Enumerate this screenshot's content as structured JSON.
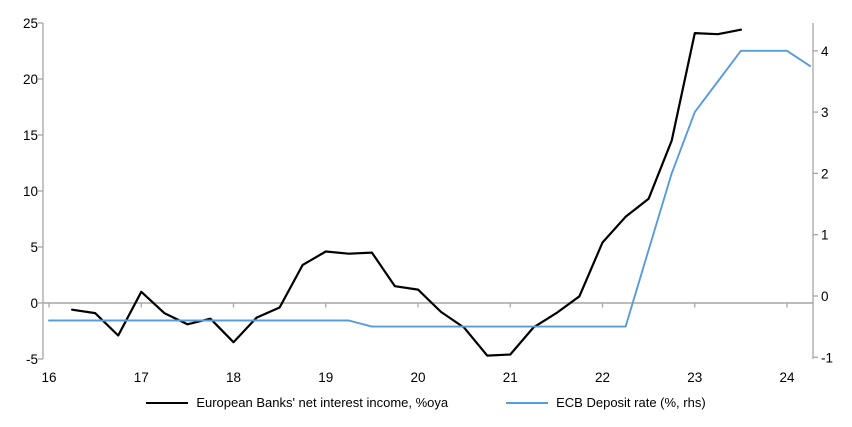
{
  "chart_data": {
    "type": "line",
    "title": "",
    "legend_position": "bottom",
    "grid": "zero-line-only",
    "x_axis": {
      "min": 16,
      "max": 24.35,
      "ticks": [
        16,
        17,
        18,
        19,
        20,
        21,
        22,
        23,
        24
      ]
    },
    "left_axis": {
      "min": -5,
      "max": 25,
      "ticks": [
        -5,
        0,
        5,
        10,
        15,
        20,
        25
      ]
    },
    "right_axis": {
      "min": -1,
      "max": 4.35,
      "ticks": [
        -1,
        0,
        1,
        2,
        3,
        4
      ]
    },
    "colors": {
      "axis": "#A6A6A6",
      "zero_line": "#A6A6A6",
      "nii_line": "#000000",
      "ecb_line": "#5B9BD5"
    },
    "series": [
      {
        "name": "European Banks' net interest income, %oya",
        "axis": "left",
        "color": "#000000",
        "x": [
          16.25,
          16.5,
          16.75,
          17.0,
          17.25,
          17.5,
          17.75,
          18.0,
          18.25,
          18.5,
          18.75,
          19.0,
          19.25,
          19.5,
          19.75,
          20.0,
          20.25,
          20.5,
          20.75,
          21.0,
          21.25,
          21.5,
          21.75,
          22.0,
          22.25,
          22.5,
          22.75,
          23.0,
          23.25,
          23.5
        ],
        "values": [
          -0.6,
          -0.9,
          -2.9,
          1.0,
          -0.9,
          -1.9,
          -1.4,
          -3.5,
          -1.3,
          -0.4,
          3.4,
          4.6,
          4.4,
          4.5,
          1.5,
          1.2,
          -0.8,
          -2.2,
          -4.7,
          -4.6,
          -2.2,
          -0.9,
          0.6,
          5.4,
          7.7,
          9.3,
          14.5,
          24.1,
          24.0,
          24.4
        ]
      },
      {
        "name": "ECB Deposit rate (%, rhs)",
        "axis": "right",
        "color": "#5B9BD5",
        "x": [
          16.0,
          16.25,
          16.5,
          16.75,
          17.0,
          17.25,
          17.5,
          17.75,
          18.0,
          18.25,
          18.5,
          18.75,
          19.0,
          19.25,
          19.5,
          19.75,
          20.0,
          20.25,
          20.5,
          20.75,
          21.0,
          21.25,
          21.5,
          21.75,
          22.0,
          22.25,
          22.5,
          22.75,
          23.0,
          23.25,
          23.5,
          23.75,
          24.0,
          24.25
        ],
        "values": [
          -0.4,
          -0.4,
          -0.4,
          -0.4,
          -0.4,
          -0.4,
          -0.4,
          -0.4,
          -0.4,
          -0.4,
          -0.4,
          -0.4,
          -0.4,
          -0.4,
          -0.5,
          -0.5,
          -0.5,
          -0.5,
          -0.5,
          -0.5,
          -0.5,
          -0.5,
          -0.5,
          -0.5,
          -0.5,
          -0.5,
          0.75,
          2.0,
          3.0,
          3.5,
          4.0,
          4.0,
          4.0,
          3.75
        ]
      }
    ]
  }
}
